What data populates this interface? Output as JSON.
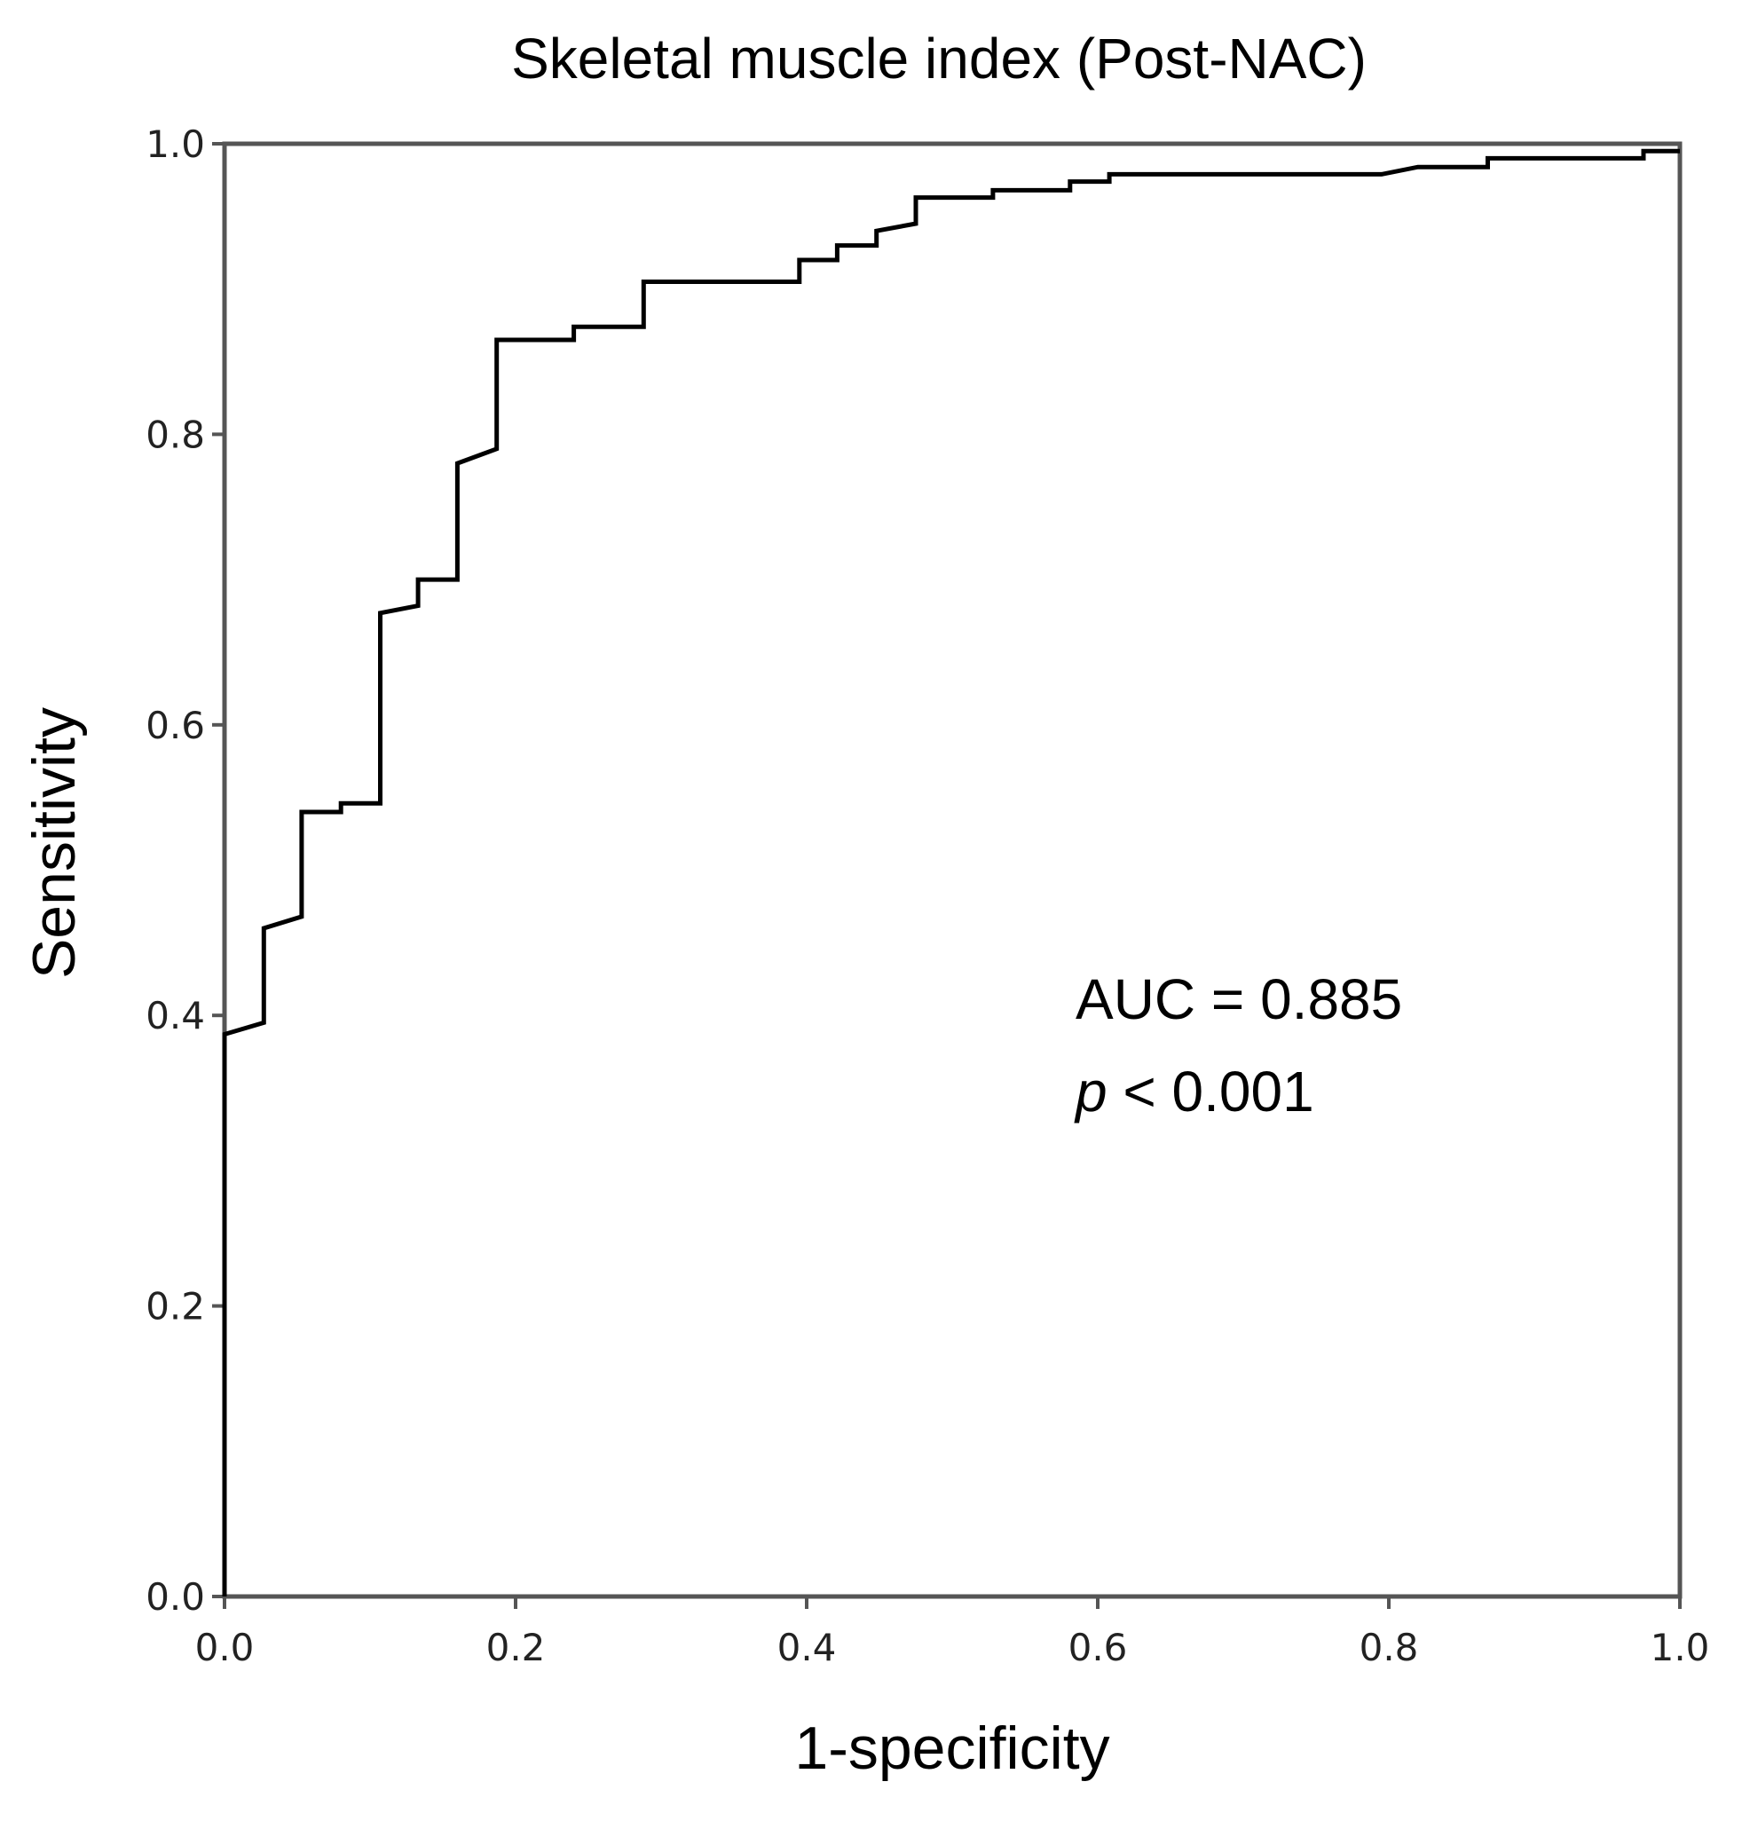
{
  "chart_data": {
    "type": "line",
    "title": "Skeletal muscle index (Post-NAC)",
    "xlabel": "1-specificity",
    "ylabel": "Sensitivity",
    "xlim": [
      0,
      1
    ],
    "ylim": [
      0,
      1
    ],
    "x_ticks": [
      "0.0",
      "0.2",
      "0.4",
      "0.6",
      "0.8",
      "1.0"
    ],
    "y_ticks": [
      "0.0",
      "0.2",
      "0.4",
      "0.6",
      "0.8",
      "1.0"
    ],
    "grid": false,
    "legend": "none",
    "annotations": {
      "auc": "AUC = 0.885",
      "p_symbol": "p",
      "p_rest": " < 0.001"
    },
    "series": [
      {
        "color": "#000000",
        "x": [
          0.0,
          0.0,
          0.027,
          0.027,
          0.053,
          0.053,
          0.08,
          0.08,
          0.107,
          0.107,
          0.133,
          0.133,
          0.16,
          0.16,
          0.187,
          0.187,
          0.24,
          0.24,
          0.288,
          0.288,
          0.395,
          0.395,
          0.421,
          0.421,
          0.448,
          0.448,
          0.475,
          0.475,
          0.528,
          0.528,
          0.581,
          0.581,
          0.608,
          0.608,
          0.795,
          0.82,
          0.868,
          0.868,
          0.975,
          0.975,
          1.0
        ],
        "y": [
          0.0,
          0.387,
          0.395,
          0.46,
          0.468,
          0.54,
          0.54,
          0.546,
          0.546,
          0.677,
          0.682,
          0.7,
          0.7,
          0.78,
          0.79,
          0.865,
          0.865,
          0.874,
          0.874,
          0.905,
          0.905,
          0.92,
          0.92,
          0.93,
          0.93,
          0.94,
          0.945,
          0.963,
          0.963,
          0.968,
          0.968,
          0.974,
          0.974,
          0.979,
          0.979,
          0.984,
          0.984,
          0.99,
          0.99,
          0.995,
          0.995
        ]
      }
    ]
  }
}
